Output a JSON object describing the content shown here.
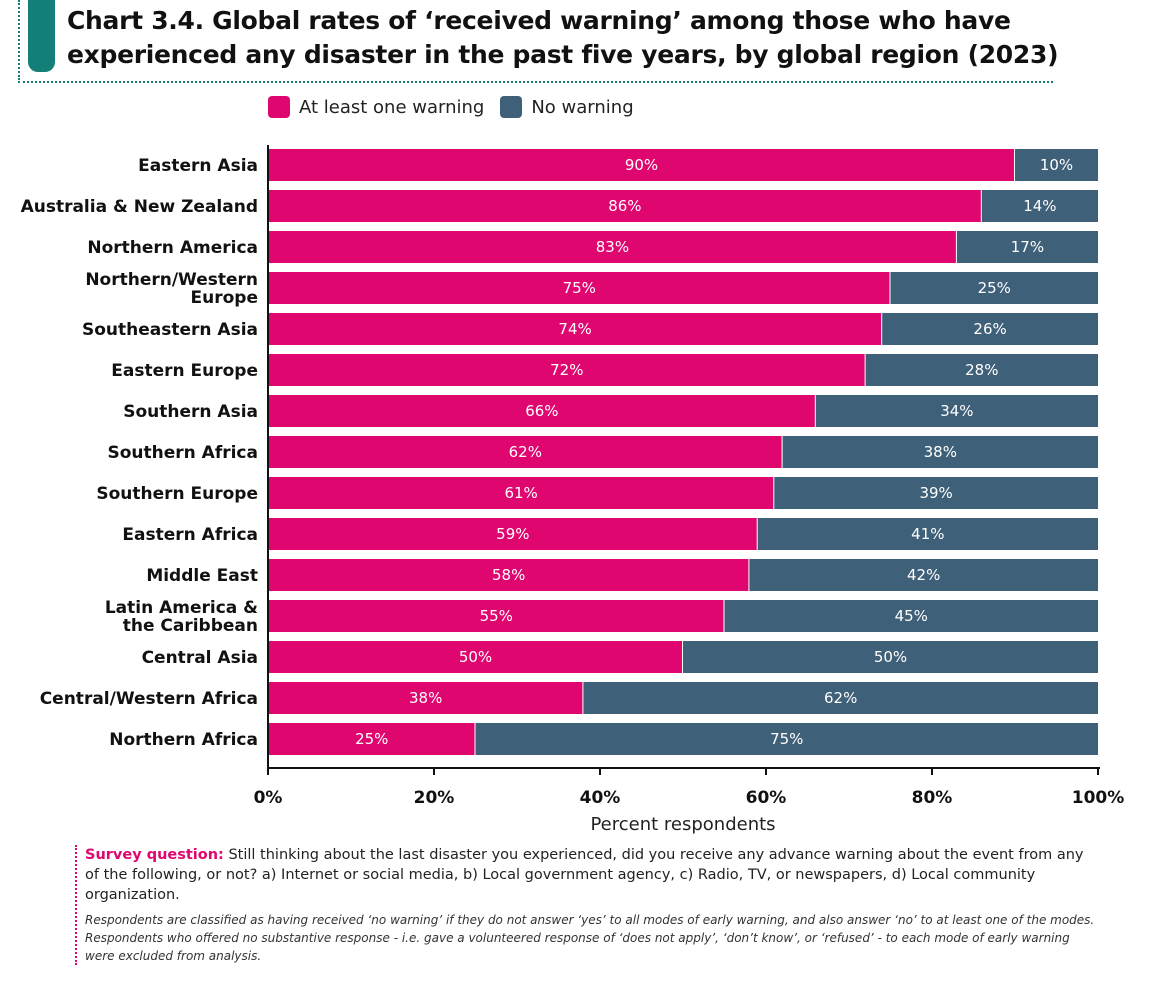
{
  "title_line1": "Chart 3.4. Global rates of ‘received warning’ among those who have",
  "title_line2": "experienced any disaster in the past five years, by global region (2023)",
  "chart_data": {
    "type": "bar",
    "orientation": "horizontal",
    "stacked": true,
    "categories": [
      "Eastern Asia",
      "Australia & New Zealand",
      "Northern America",
      "Northern/Western Europe",
      "Southeastern Asia",
      "Eastern Europe",
      "Southern Asia",
      "Southern Africa",
      "Southern Europe",
      "Eastern Africa",
      "Middle East",
      "Latin America & the Caribbean",
      "Central Asia",
      "Central/Western Africa",
      "Northern Africa"
    ],
    "category_lines": [
      [
        "Eastern Asia"
      ],
      [
        "Australia & New Zealand"
      ],
      [
        "Northern America"
      ],
      [
        "Northern/Western",
        "Europe"
      ],
      [
        "Southeastern Asia"
      ],
      [
        "Eastern Europe"
      ],
      [
        "Southern Asia"
      ],
      [
        "Southern Africa"
      ],
      [
        "Southern Europe"
      ],
      [
        "Eastern Africa"
      ],
      [
        "Middle East"
      ],
      [
        "Latin America &",
        "the Caribbean"
      ],
      [
        "Central Asia"
      ],
      [
        "Central/Western Africa"
      ],
      [
        "Northern Africa"
      ]
    ],
    "series": [
      {
        "name": "At least one warning",
        "color": "#e0066f",
        "values": [
          90,
          86,
          83,
          75,
          74,
          72,
          66,
          62,
          61,
          59,
          58,
          55,
          50,
          38,
          25
        ]
      },
      {
        "name": "No warning",
        "color": "#3f6079",
        "values": [
          10,
          14,
          17,
          25,
          26,
          28,
          34,
          38,
          39,
          41,
          42,
          45,
          50,
          62,
          75
        ]
      }
    ],
    "xlabel": "Percent respondents",
    "xlim": [
      0,
      100
    ],
    "xticks": [
      "0%",
      "20%",
      "40%",
      "60%",
      "80%",
      "100%"
    ],
    "grid": false,
    "legend_position": "top"
  },
  "note": {
    "label": "Survey question:",
    "question": " Still thinking about the last disaster you experienced, did you receive any advance warning about the event from any of the following, or not? a) Internet or social media, b) Local government agency, c) Radio, TV, or newspapers, d) Local community organization.",
    "footnote": "Respondents are classified as having received ‘no warning’ if they do not answer ‘yes’ to all modes of early warning, and also answer ‘no’ to at least one of the modes. Respondents who offered no substantive response - i.e. gave a volunteered response of ‘does not apply’, ‘don’t know’, or ‘refused’ - to each mode of early warning were excluded from analysis."
  },
  "colors": {
    "accent": "#137f78",
    "warning": "#e0066f",
    "no_warning": "#3f6079"
  }
}
